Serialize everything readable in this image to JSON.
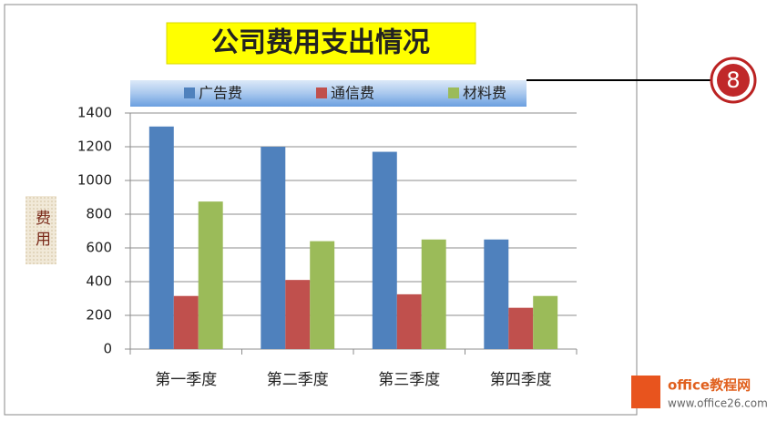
{
  "chart_data": {
    "type": "bar",
    "title": "公司费用支出情况",
    "y_label": "费用",
    "categories": [
      "第一季度",
      "第二季度",
      "第三季度",
      "第四季度"
    ],
    "series": [
      {
        "name": "广告费",
        "color": "#4f81bd",
        "values": [
          1320,
          1200,
          1170,
          650
        ]
      },
      {
        "name": "通信费",
        "color": "#c0504d",
        "values": [
          315,
          410,
          325,
          245
        ]
      },
      {
        "name": "材料费",
        "color": "#9bbb59",
        "values": [
          875,
          640,
          650,
          315
        ]
      }
    ],
    "ylim": [
      0,
      1400
    ],
    "yticks": [
      0,
      200,
      400,
      600,
      800,
      1000,
      1200,
      1400
    ],
    "grid": true,
    "legend": "top"
  },
  "badge": "8",
  "watermark": {
    "name": "office教程网",
    "url": "www.office26.com"
  }
}
